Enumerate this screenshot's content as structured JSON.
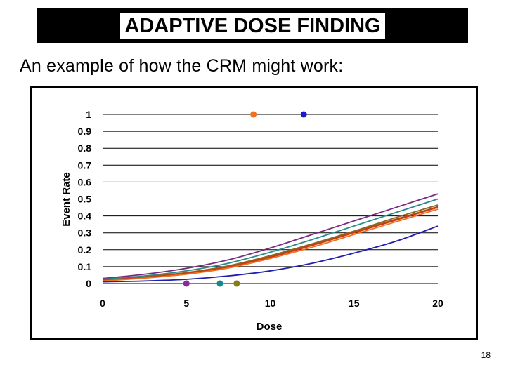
{
  "slide": {
    "title": "ADAPTIVE DOSE FINDING",
    "subtitle": "An example of how the CRM might work:",
    "page_number": "18"
  },
  "chart_data": {
    "type": "line",
    "title": "",
    "xlabel": "Dose",
    "ylabel": "Event Rate",
    "xlim": [
      0,
      20
    ],
    "ylim": [
      0,
      1
    ],
    "x_ticks": [
      0,
      5,
      10,
      15,
      20
    ],
    "y_ticks": [
      0,
      0.1,
      0.2,
      0.3,
      0.4,
      0.5,
      0.6,
      0.7,
      0.8,
      0.9,
      1
    ],
    "y_tick_labels": [
      "0",
      "0.1",
      "0.2",
      "0.3",
      "0.4",
      "0.5",
      "0.6",
      "0.7",
      "0.8",
      "0.9",
      "1"
    ],
    "x_tick_labels": [
      "0",
      "5",
      "10",
      "15",
      "20"
    ],
    "grid": "horizontal",
    "x": [
      0,
      2.5,
      5,
      7.5,
      10,
      12.5,
      15,
      17.5,
      20
    ],
    "series": [
      {
        "name": "curve-purple",
        "color": "#7b2a82",
        "values": [
          0.03,
          0.055,
          0.09,
          0.14,
          0.21,
          0.29,
          0.37,
          0.45,
          0.53
        ]
      },
      {
        "name": "curve-teal",
        "color": "#2a8a8a",
        "values": [
          0.025,
          0.045,
          0.075,
          0.12,
          0.185,
          0.26,
          0.34,
          0.42,
          0.5
        ]
      },
      {
        "name": "curve-olive",
        "color": "#8a6a1a",
        "values": [
          0.02,
          0.04,
          0.065,
          0.105,
          0.165,
          0.235,
          0.31,
          0.39,
          0.465
        ]
      },
      {
        "name": "curve-brown",
        "color": "#a0522d",
        "values": [
          0.02,
          0.038,
          0.062,
          0.1,
          0.16,
          0.23,
          0.305,
          0.38,
          0.455
        ]
      },
      {
        "name": "curve-red",
        "color": "#d03a10",
        "values": [
          0.018,
          0.035,
          0.06,
          0.098,
          0.155,
          0.225,
          0.3,
          0.375,
          0.45
        ]
      },
      {
        "name": "curve-orange",
        "color": "#f07020",
        "values": [
          0.015,
          0.032,
          0.055,
          0.092,
          0.148,
          0.215,
          0.29,
          0.365,
          0.44
        ]
      },
      {
        "name": "curve-blue",
        "color": "#1f1fb0",
        "values": [
          0.01,
          0.015,
          0.025,
          0.045,
          0.075,
          0.12,
          0.18,
          0.25,
          0.34
        ]
      }
    ],
    "points": [
      {
        "name": "outcome-purple",
        "x": 5,
        "y": 0,
        "color": "#8b2a9b"
      },
      {
        "name": "outcome-teal",
        "x": 7,
        "y": 0,
        "color": "#138a8a"
      },
      {
        "name": "outcome-olive",
        "x": 8,
        "y": 0,
        "color": "#8a7d10"
      },
      {
        "name": "outcome-orange",
        "x": 9,
        "y": 1,
        "color": "#f07020"
      },
      {
        "name": "outcome-blue",
        "x": 12,
        "y": 1,
        "color": "#1a1ad0"
      }
    ]
  }
}
